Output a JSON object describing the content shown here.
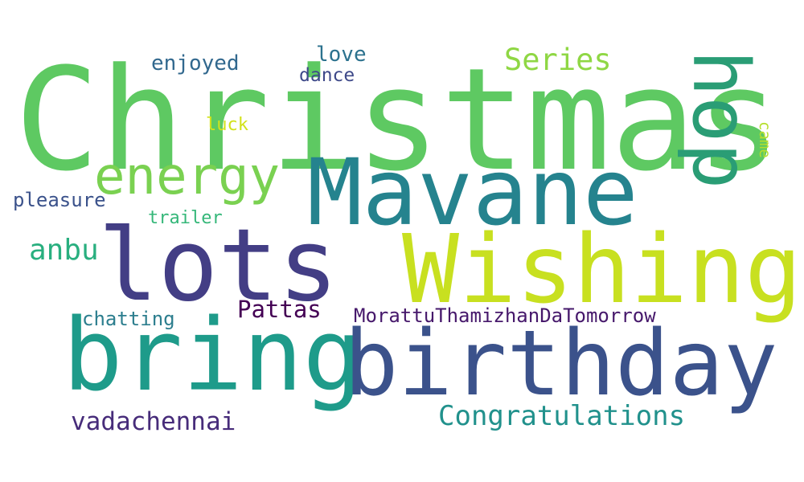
{
  "words": [
    {
      "key": "christmas",
      "text": "Christmas",
      "color": "#5ec962"
    },
    {
      "key": "mavane",
      "text": "Mavane",
      "color": "#25838e"
    },
    {
      "key": "wishing",
      "text": "Wishing",
      "color": "#c8e020"
    },
    {
      "key": "lots",
      "text": "lots",
      "color": "#433e85"
    },
    {
      "key": "bring",
      "text": "bring",
      "color": "#1e9b8a"
    },
    {
      "key": "birthday",
      "text": "birthday",
      "color": "#3b528b"
    },
    {
      "key": "hop",
      "text": "hop",
      "color": "#2a9d75"
    },
    {
      "key": "energy",
      "text": "energy",
      "color": "#7ad151"
    },
    {
      "key": "series",
      "text": "Series",
      "color": "#8fd744"
    },
    {
      "key": "enjoyed",
      "text": "enjoyed",
      "color": "#31688e"
    },
    {
      "key": "love",
      "text": "love",
      "color": "#2c728e"
    },
    {
      "key": "dance",
      "text": "dance",
      "color": "#3e4989"
    },
    {
      "key": "luck",
      "text": "luck",
      "color": "#d2e21b"
    },
    {
      "key": "came",
      "text": "came",
      "color": "#b5de2b"
    },
    {
      "key": "pleasure",
      "text": "pleasure",
      "color": "#3b528b"
    },
    {
      "key": "trailer",
      "text": "trailer",
      "color": "#35b779"
    },
    {
      "key": "anbu",
      "text": "anbu",
      "color": "#29af7f"
    },
    {
      "key": "pattas",
      "text": "Pattas",
      "color": "#440154"
    },
    {
      "key": "morattu",
      "text": "MorattuThamizhanDaTomorrow",
      "color": "#46186b"
    },
    {
      "key": "chatting",
      "text": "chatting",
      "color": "#2c7e8e"
    },
    {
      "key": "vadachennai",
      "text": "vadachennai",
      "color": "#472c7a"
    },
    {
      "key": "congratulations",
      "text": "Congratulations",
      "color": "#21918c"
    }
  ]
}
